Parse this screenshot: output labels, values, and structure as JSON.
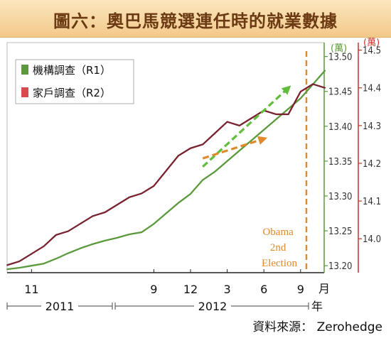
{
  "title": "圖六：奧巴馬競選連任時的就業數據",
  "source": "資料來源： Zerohedge",
  "colors": {
    "green": "#5b9a3c",
    "red": "#7a2330",
    "orange": "#e08a2e",
    "green_axis": "#5b9a3c",
    "red_axis": "#c0392b",
    "title_bg": "#f3c98b",
    "title_text": "#6b3a12"
  },
  "chart_data": {
    "type": "line",
    "x_tick_labels": [
      "11",
      "9",
      "12",
      "3",
      "6",
      "9"
    ],
    "x_unit": "月",
    "year_unit": "年",
    "year_labels": [
      "2011",
      "2012"
    ],
    "y1": {
      "unit": "(萬)",
      "ylim": [
        13.19,
        13.52
      ],
      "ticks": [
        "13.20",
        "13.25",
        "13.30",
        "13.35",
        "13.40",
        "13.45",
        "13.50"
      ]
    },
    "y2": {
      "unit": "(萬)",
      "ylim": [
        13.91,
        14.52
      ],
      "ticks": [
        "14.0",
        "14.1",
        "14.2",
        "14.3",
        "14.4",
        "14.5"
      ]
    },
    "series": [
      {
        "name": "機構調查（R1）",
        "axis": "y1",
        "color": "#5b9a3c",
        "x": [
          "2010-09",
          "2010-10",
          "2010-11",
          "2010-12",
          "2011-01",
          "2011-02",
          "2011-03",
          "2011-04",
          "2011-05",
          "2011-06",
          "2011-07",
          "2011-08",
          "2011-09",
          "2011-10",
          "2011-11",
          "2011-12",
          "2012-01",
          "2012-02",
          "2012-03",
          "2012-04",
          "2012-05",
          "2012-06",
          "2012-07",
          "2012-08",
          "2012-09",
          "2012-10",
          "2012-11"
        ],
        "values": [
          13.195,
          13.197,
          13.2,
          13.203,
          13.21,
          13.218,
          13.225,
          13.231,
          13.236,
          13.24,
          13.245,
          13.248,
          13.26,
          13.275,
          13.29,
          13.303,
          13.323,
          13.335,
          13.35,
          13.365,
          13.38,
          13.395,
          13.41,
          13.425,
          13.44,
          13.46,
          13.48
        ]
      },
      {
        "name": "家戶調查（R2）",
        "axis": "y2",
        "color": "#7a2330",
        "x": [
          "2010-09",
          "2010-10",
          "2010-11",
          "2010-12",
          "2011-01",
          "2011-02",
          "2011-03",
          "2011-04",
          "2011-05",
          "2011-06",
          "2011-07",
          "2011-08",
          "2011-09",
          "2011-10",
          "2011-11",
          "2011-12",
          "2012-01",
          "2012-02",
          "2012-03",
          "2012-04",
          "2012-05",
          "2012-06",
          "2012-07",
          "2012-08",
          "2012-09",
          "2012-10",
          "2012-11"
        ],
        "values": [
          13.93,
          13.94,
          13.96,
          13.98,
          14.01,
          14.02,
          14.04,
          14.06,
          14.07,
          14.09,
          14.11,
          14.12,
          14.14,
          14.18,
          14.22,
          14.24,
          14.25,
          14.28,
          14.31,
          14.3,
          14.32,
          14.34,
          14.33,
          14.33,
          14.39,
          14.41,
          14.4
        ]
      }
    ],
    "annotations": [
      {
        "text": "Obama 2nd Election",
        "lines": [
          "Obama",
          "2nd",
          "Election"
        ],
        "x": "2012-11",
        "color": "#e08a2e"
      }
    ],
    "trend_arrows": [
      {
        "series": "機構調查（R1）",
        "from": [
          "2012-01",
          13.342
        ],
        "to": [
          "2012-08",
          13.455
        ],
        "color": "#5fbe3c"
      },
      {
        "series": "家戶調查（R2）",
        "from": [
          "2012-01",
          14.213
        ],
        "to": [
          "2012-06",
          14.265
        ],
        "color": "#e08a2e"
      }
    ],
    "legend": "top-left",
    "grid": false
  }
}
